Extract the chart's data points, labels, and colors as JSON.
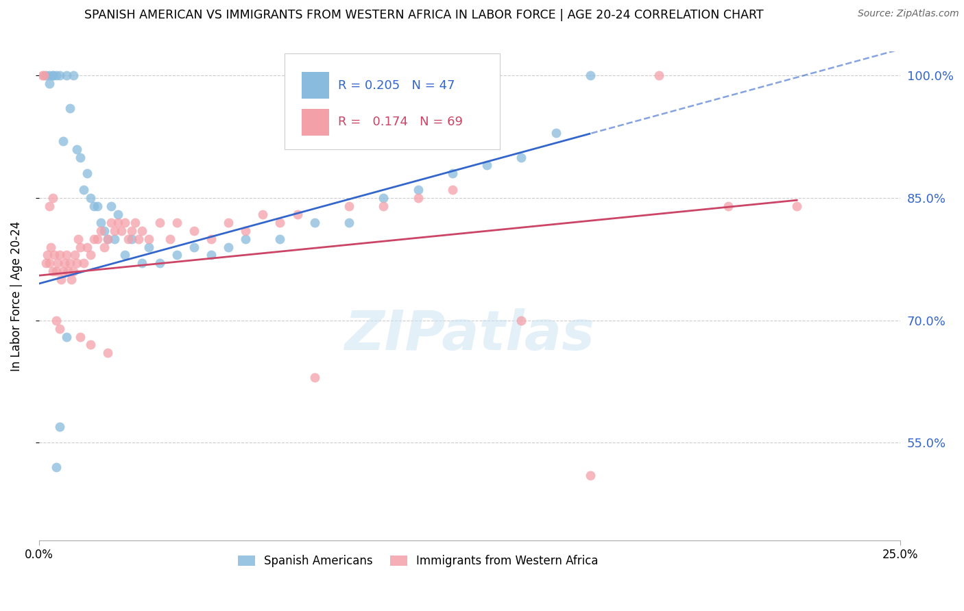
{
  "title": "SPANISH AMERICAN VS IMMIGRANTS FROM WESTERN AFRICA IN LABOR FORCE | AGE 20-24 CORRELATION CHART",
  "source": "Source: ZipAtlas.com",
  "ylabel": "In Labor Force | Age 20-24",
  "yticks": [
    55.0,
    70.0,
    85.0,
    100.0
  ],
  "ytick_labels": [
    "55.0%",
    "70.0%",
    "85.0%",
    "100.0%"
  ],
  "xmin": 0.0,
  "xmax": 25.0,
  "ymin": 43.0,
  "ymax": 103.0,
  "blue_R": 0.205,
  "blue_N": 47,
  "pink_R": 0.174,
  "pink_N": 69,
  "blue_color": "#88bbdd",
  "pink_color": "#f4a0a8",
  "trend_blue": "#3366cc",
  "trend_pink": "#cc4466",
  "watermark": "ZIPatlas",
  "legend_label_blue": "Spanish Americans",
  "legend_label_pink": "Immigrants from Western Africa",
  "blue_trend_intercept": 74.5,
  "blue_trend_slope": 1.15,
  "blue_solid_xmax": 16.0,
  "pink_trend_intercept": 75.5,
  "pink_trend_slope": 0.42,
  "pink_solid_xmax": 22.0,
  "blue_x": [
    0.2,
    0.3,
    0.3,
    0.4,
    0.4,
    0.5,
    0.6,
    0.7,
    0.8,
    0.9,
    1.0,
    1.1,
    1.2,
    1.3,
    1.4,
    1.5,
    1.6,
    1.7,
    1.8,
    1.9,
    2.0,
    2.1,
    2.2,
    2.3,
    2.5,
    2.7,
    3.0,
    3.2,
    3.5,
    4.0,
    4.5,
    5.0,
    5.5,
    6.0,
    7.0,
    8.0,
    9.0,
    10.0,
    11.0,
    12.0,
    13.0,
    14.0,
    15.0,
    16.0,
    0.5,
    0.6,
    0.8
  ],
  "blue_y": [
    100.0,
    100.0,
    99.0,
    100.0,
    100.0,
    100.0,
    100.0,
    92.0,
    100.0,
    96.0,
    100.0,
    91.0,
    90.0,
    86.0,
    88.0,
    85.0,
    84.0,
    84.0,
    82.0,
    81.0,
    80.0,
    84.0,
    80.0,
    83.0,
    78.0,
    80.0,
    77.0,
    79.0,
    77.0,
    78.0,
    79.0,
    78.0,
    79.0,
    80.0,
    80.0,
    82.0,
    82.0,
    85.0,
    86.0,
    88.0,
    89.0,
    90.0,
    93.0,
    100.0,
    52.0,
    57.0,
    68.0
  ],
  "pink_x": [
    0.1,
    0.15,
    0.2,
    0.25,
    0.3,
    0.35,
    0.4,
    0.45,
    0.5,
    0.55,
    0.6,
    0.65,
    0.7,
    0.75,
    0.8,
    0.85,
    0.9,
    0.95,
    1.0,
    1.05,
    1.1,
    1.15,
    1.2,
    1.3,
    1.4,
    1.5,
    1.6,
    1.7,
    1.8,
    1.9,
    2.0,
    2.1,
    2.2,
    2.3,
    2.4,
    2.5,
    2.6,
    2.7,
    2.8,
    2.9,
    3.0,
    3.2,
    3.5,
    3.8,
    4.0,
    4.5,
    5.0,
    5.5,
    6.0,
    6.5,
    7.0,
    7.5,
    8.0,
    9.0,
    10.0,
    11.0,
    12.0,
    14.0,
    16.0,
    18.0,
    20.0,
    22.0,
    0.3,
    0.4,
    0.5,
    0.6,
    1.2,
    1.5,
    2.0
  ],
  "pink_y": [
    100.0,
    100.0,
    77.0,
    78.0,
    77.0,
    79.0,
    76.0,
    78.0,
    76.0,
    77.0,
    78.0,
    75.0,
    76.0,
    77.0,
    78.0,
    76.0,
    77.0,
    75.0,
    76.0,
    78.0,
    77.0,
    80.0,
    79.0,
    77.0,
    79.0,
    78.0,
    80.0,
    80.0,
    81.0,
    79.0,
    80.0,
    82.0,
    81.0,
    82.0,
    81.0,
    82.0,
    80.0,
    81.0,
    82.0,
    80.0,
    81.0,
    80.0,
    82.0,
    80.0,
    82.0,
    81.0,
    80.0,
    82.0,
    81.0,
    83.0,
    82.0,
    83.0,
    63.0,
    84.0,
    84.0,
    85.0,
    86.0,
    70.0,
    51.0,
    100.0,
    84.0,
    84.0,
    84.0,
    85.0,
    70.0,
    69.0,
    68.0,
    67.0,
    66.0
  ]
}
